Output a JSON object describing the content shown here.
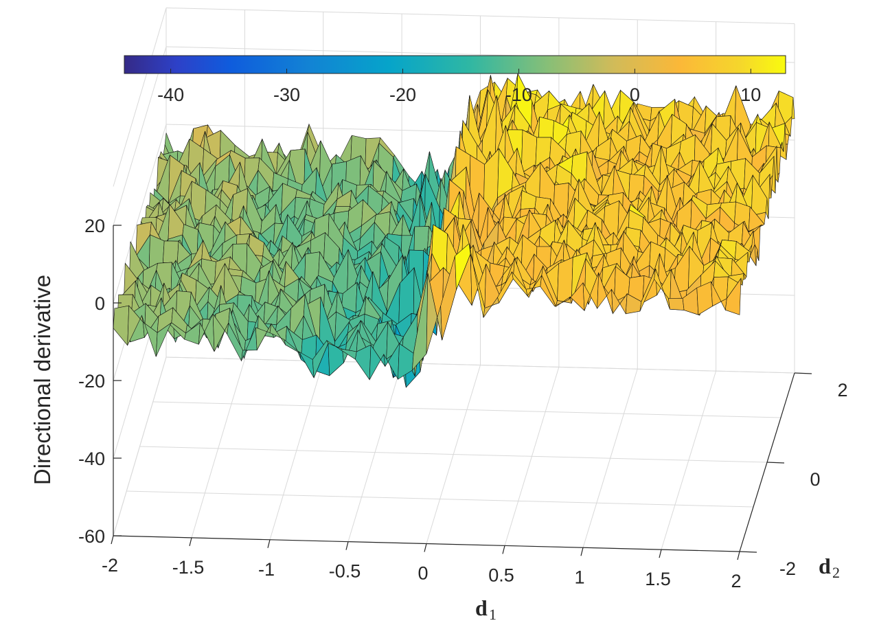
{
  "chart_data": {
    "type": "surface",
    "title": "",
    "xlabel_main": "d",
    "xlabel_sub": "1",
    "ylabel_main": "d",
    "ylabel_sub": "2",
    "zlabel": "Directional derivative",
    "xlim": [
      -2,
      2
    ],
    "ylim": [
      -2,
      2
    ],
    "zlim": [
      -60,
      30
    ],
    "x_ticks": [
      "-2",
      "-1.5",
      "-1",
      "-0.5",
      "0",
      "0.5",
      "1",
      "1.5",
      "2"
    ],
    "y_ticks": [
      "-2",
      "0",
      "2"
    ],
    "z_ticks": [
      "-60",
      "-40",
      "-20",
      "0",
      "20"
    ],
    "colorbar": {
      "location": "top",
      "limits": [
        -44,
        13
      ],
      "ticks": [
        "-40",
        "-30",
        "-20",
        "-10",
        "0",
        "10"
      ],
      "colormap": "parula"
    },
    "grid": true,
    "surface_trend": {
      "description_points_x": [
        -2,
        -1.5,
        -1,
        -0.5,
        -0.1,
        0,
        0.5,
        1,
        1.5,
        2
      ],
      "mean_z": [
        -6,
        -7,
        -9,
        -11,
        -16,
        5,
        6,
        6,
        6,
        6
      ]
    }
  }
}
